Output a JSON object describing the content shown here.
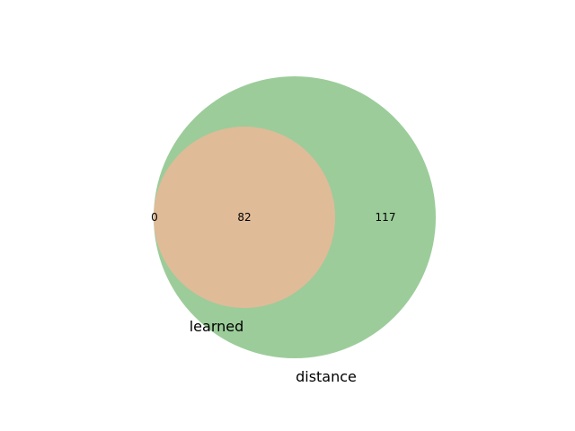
{
  "venn": {
    "sets": [
      {
        "label": "learned",
        "color": "#e0bb98"
      },
      {
        "label": "distance",
        "color": "#9ccc9a"
      }
    ],
    "counts": {
      "learned_only": "0",
      "intersection": "82",
      "distance_only": "117"
    }
  }
}
